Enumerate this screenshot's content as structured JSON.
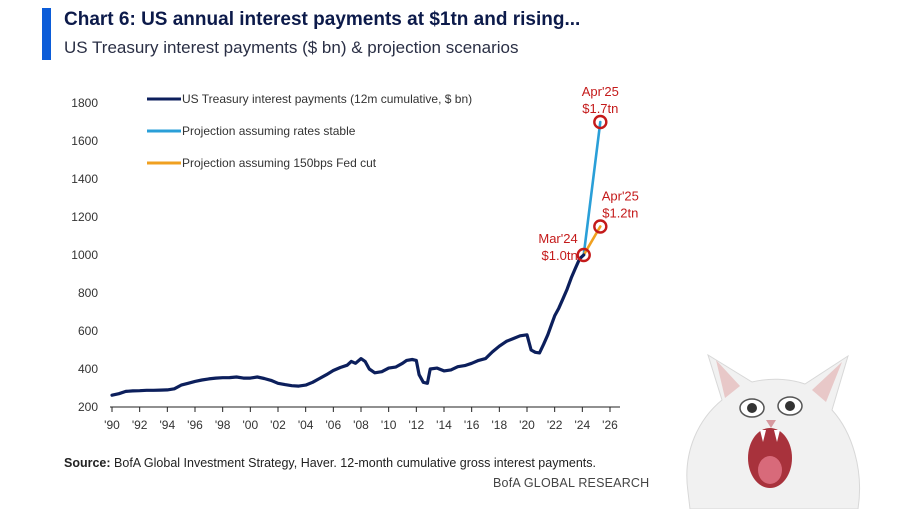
{
  "header": {
    "title": "Chart 6: US annual interest payments at $1tn and rising...",
    "subtitle": "US Treasury interest payments ($ bn) & projection scenarios"
  },
  "footer": {
    "source_label": "Source:",
    "source_text": "BofA Global Investment Strategy, Haver. 12-month cumulative gross interest payments.",
    "brand": "BofA GLOBAL RESEARCH"
  },
  "colors": {
    "accent": "#0b5cd8",
    "historical": "#0c1f5c",
    "stable": "#2a9fd8",
    "cut": "#f0a020",
    "annotation": "#c41a1a"
  },
  "decor": {
    "mascot": "cat-screaming-icon"
  },
  "chart_data": {
    "type": "line",
    "title": "US Treasury interest payments ($ bn) & projection scenarios",
    "xlabel": "",
    "ylabel": "",
    "xlim": [
      1990,
      2026
    ],
    "ylim": [
      200,
      1800
    ],
    "yticks": [
      200,
      400,
      600,
      800,
      1000,
      1200,
      1400,
      1600,
      1800
    ],
    "xticks": [
      "'90",
      "'92",
      "'94",
      "'96",
      "'98",
      "'00",
      "'02",
      "'04",
      "'06",
      "'08",
      "'10",
      "'12",
      "'14",
      "'16",
      "'18",
      "'20",
      "'22",
      "'24",
      "'26"
    ],
    "xtick_values": [
      1990,
      1992,
      1994,
      1996,
      1998,
      2000,
      2002,
      2004,
      2006,
      2008,
      2010,
      2012,
      2014,
      2016,
      2018,
      2020,
      2022,
      2024,
      2026
    ],
    "legend": {
      "position": "top-left",
      "entries": [
        "US Treasury interest payments (12m cumulative, $ bn)",
        "Projection assuming rates stable",
        "Projection assuming 150bps Fed cut"
      ]
    },
    "series": [
      {
        "name": "US Treasury interest payments (12m cumulative, $ bn)",
        "color": "#0c1f5c",
        "x": [
          1990,
          1990.5,
          1991,
          1991.5,
          1992,
          1992.5,
          1993,
          1993.5,
          1994,
          1994.5,
          1995,
          1995.5,
          1996,
          1996.5,
          1997,
          1997.5,
          1998,
          1998.5,
          1999,
          1999.5,
          2000,
          2000.5,
          2001,
          2001.5,
          2002,
          2002.5,
          2003,
          2003.5,
          2004,
          2004.5,
          2005,
          2005.5,
          2006,
          2006.5,
          2007,
          2007.3,
          2007.6,
          2008,
          2008.3,
          2008.6,
          2009,
          2009.5,
          2010,
          2010.5,
          2011,
          2011.3,
          2011.7,
          2012,
          2012.2,
          2012.5,
          2012.8,
          2013,
          2013.5,
          2014,
          2014.5,
          2015,
          2015.5,
          2016,
          2016.5,
          2017,
          2017.5,
          2018,
          2018.5,
          2019,
          2019.5,
          2020,
          2020.3,
          2020.6,
          2020.9,
          2021.2,
          2021.5,
          2021.8,
          2022,
          2022.3,
          2022.6,
          2022.9,
          2023.2,
          2023.5,
          2023.8,
          2024.1
        ],
        "values": [
          262,
          270,
          282,
          285,
          286,
          288,
          288,
          289,
          290,
          296,
          315,
          325,
          335,
          342,
          348,
          352,
          354,
          355,
          358,
          352,
          352,
          358,
          350,
          340,
          325,
          318,
          312,
          310,
          315,
          330,
          350,
          370,
          392,
          408,
          420,
          440,
          430,
          455,
          440,
          400,
          380,
          386,
          405,
          410,
          430,
          445,
          450,
          445,
          370,
          330,
          325,
          400,
          405,
          390,
          395,
          412,
          418,
          430,
          445,
          455,
          490,
          520,
          545,
          560,
          575,
          580,
          500,
          488,
          485,
          530,
          580,
          640,
          680,
          720,
          770,
          820,
          880,
          930,
          980,
          1000
        ]
      },
      {
        "name": "Projection assuming rates stable",
        "color": "#2a9fd8",
        "x": [
          2024.1,
          2025.3
        ],
        "values": [
          1000,
          1700
        ]
      },
      {
        "name": "Projection assuming 150bps Fed cut",
        "color": "#f0a020",
        "x": [
          2024.1,
          2025.3
        ],
        "values": [
          1000,
          1150
        ]
      }
    ],
    "annotations": [
      {
        "x": 2024.1,
        "y": 1000,
        "line1": "Mar'24",
        "line2": "$1.0tn",
        "placement": "left"
      },
      {
        "x": 2025.3,
        "y": 1700,
        "line1": "Apr'25",
        "line2": "$1.7tn",
        "placement": "above"
      },
      {
        "x": 2025.3,
        "y": 1150,
        "line1": "Apr'25",
        "line2": "$1.2tn",
        "placement": "above-right"
      }
    ]
  }
}
